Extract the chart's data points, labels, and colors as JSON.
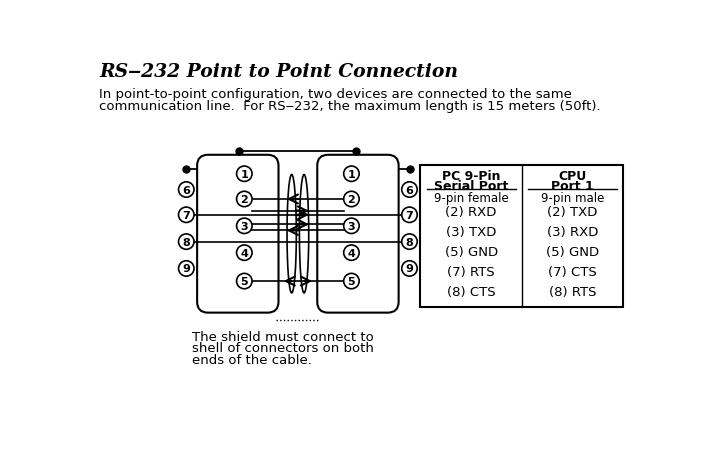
{
  "title": "RS‒232 Point to Point Connection",
  "subtitle_line1": "In point‑to‑point configuration, two devices are connected to the same",
  "subtitle_line2": "communication line.  For RS‒232, the maximum length is 15 meters (50ft).",
  "shield_note_line1": "The shield must connect to",
  "shield_note_line2": "shell of connectors on both",
  "shield_note_line3": "ends of the cable.",
  "table_col1_header1": "PC 9-Pin",
  "table_col1_header2": "Serial Port",
  "table_col2_header1": "CPU",
  "table_col2_header2": "Port 1",
  "table_subheader1": "9-pin female",
  "table_subheader2": "9-pin male",
  "table_rows": [
    [
      "(2) RXD",
      "(2) TXD"
    ],
    [
      "(3) TXD",
      "(3) RXD"
    ],
    [
      "(5) GND",
      "(5) GND"
    ],
    [
      "(7) RTS",
      "(7) CTS"
    ],
    [
      "(8) CTS",
      "(8) RTS"
    ]
  ],
  "bg_color": "#ffffff",
  "text_color": "#000000"
}
